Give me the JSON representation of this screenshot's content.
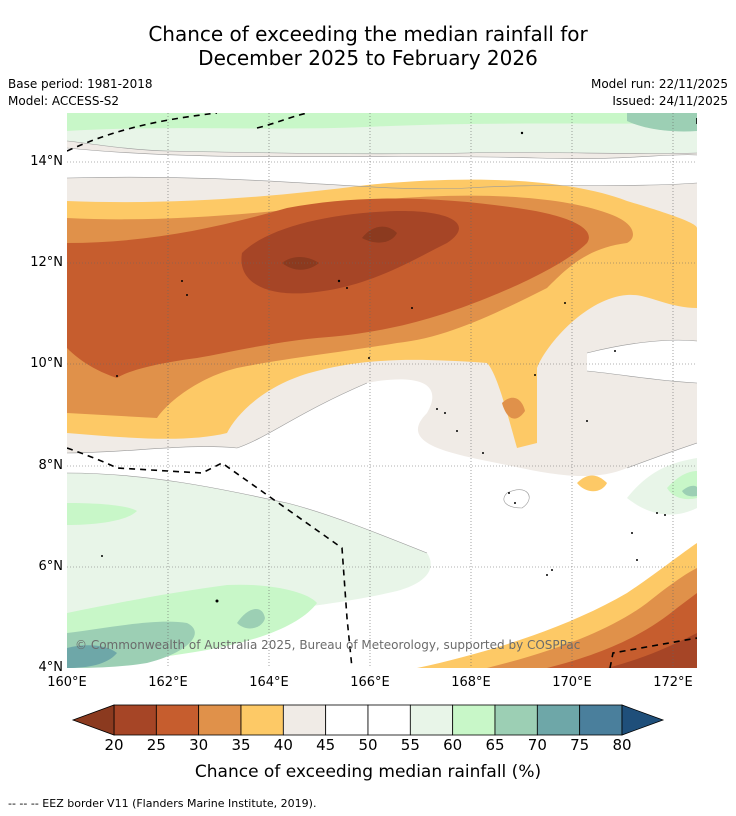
{
  "title": {
    "line1": "Chance of exceeding the median rainfall for",
    "line2": "December 2025 to February 2026"
  },
  "meta": {
    "base_period": "Base period: 1981-2018",
    "model": "Model: ACCESS-S2",
    "model_run": "Model run: 22/11/2025",
    "issued": "Issued: 24/11/2025"
  },
  "axes": {
    "lat_labels": [
      "14°N",
      "12°N",
      "10°N",
      "8°N",
      "6°N",
      "4°N"
    ],
    "lon_labels": [
      "160°E",
      "162°E",
      "164°E",
      "166°E",
      "168°E",
      "170°E",
      "172°E"
    ]
  },
  "copyright": "© Commonwealth of Australia 2025, Bureau of Meteorology, supported by COSPPac",
  "colorbar": {
    "ticks": [
      "20",
      "25",
      "30",
      "35",
      "40",
      "45",
      "50",
      "55",
      "60",
      "65",
      "70",
      "75",
      "80"
    ],
    "title": "Chance of exceeding median rainfall (%)",
    "colors": [
      "#a64526",
      "#c65d2e",
      "#e0914a",
      "#fdc966",
      "#f0ebe6",
      "#ffffff",
      "#ffffff",
      "#e8f5e8",
      "#c8f7c8",
      "#9ccfb4",
      "#6ea7a8",
      "#4a7f9c"
    ],
    "under_color": "#8b3a1f",
    "over_color": "#1f4f7a"
  },
  "footer": "-- -- -- EEZ border V11 (Flanders Marine Institute, 2019)."
}
